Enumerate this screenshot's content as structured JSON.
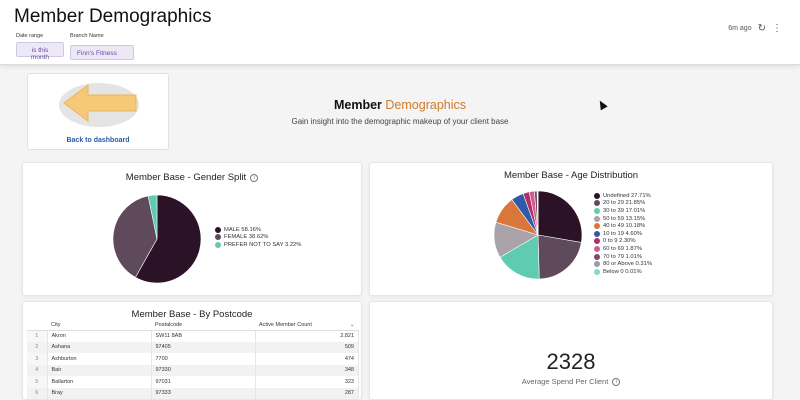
{
  "header": {
    "title": "Member Demographics",
    "filters": [
      {
        "label": "Date range",
        "value": "is this month"
      },
      {
        "label": "Branch Name",
        "value": "Finn's Fitness"
      }
    ],
    "updated": "6m ago",
    "refresh_icon": "refresh-icon",
    "menu_icon": "kebab-menu-icon"
  },
  "back_card": {
    "link": "Back to dashboard",
    "icon": "arrow-left-icon"
  },
  "intro": {
    "title_main": "Member",
    "title_accent": "Demographics",
    "subtitle": "Gain insight into the demographic makeup of your client base"
  },
  "gender_card": {
    "title": "Member Base - Gender Split",
    "chart_data": {
      "type": "pie",
      "categories": [
        "MALE",
        "FEMALE",
        "PREFER NOT TO SAY"
      ],
      "values": [
        58.16,
        38.62,
        3.22
      ],
      "legend": [
        "MALE 58.16%",
        "FEMALE 38.62%",
        "PREFER NOT TO SAY 3.22%"
      ],
      "colors": [
        "#2b1226",
        "#5e4a5a",
        "#5fcbb0"
      ],
      "legend_placement": "right"
    }
  },
  "age_card": {
    "title": "Member Base - Age Distribution",
    "chart_data": {
      "type": "pie",
      "categories": [
        "Undefined",
        "20 to 29",
        "30 to 39",
        "50 to 59",
        "40 to 49",
        "10 to 19",
        "0 to 9",
        "60 to 69",
        "70 to 79",
        "80 or Above",
        "Below 0"
      ],
      "values": [
        27.71,
        21.85,
        17.01,
        13.15,
        10.18,
        4.6,
        2.3,
        1.87,
        1.01,
        0.31,
        0.01
      ],
      "legend": [
        "Undefined 27.71%",
        "20 to 29 21.85%",
        "30 to 39 17.01%",
        "50 to 59 13.15%",
        "40 to 49 10.18%",
        "10 to 19 4.60%",
        "0 to 9 2.30%",
        "60 to 69 1.87%",
        "70 to 79 1.01%",
        "80 or Above 0.31%",
        "Below 0 0.01%"
      ],
      "colors": [
        "#2b1226",
        "#5e4a5a",
        "#5fcbb0",
        "#a9a2a8",
        "#d9763a",
        "#2e5aa8",
        "#b0306a",
        "#d65a8a",
        "#7a4a6a",
        "#9a9aaa",
        "#8ad8c0"
      ],
      "legend_placement": "right"
    }
  },
  "postcode_card": {
    "title": "Member Base - By Postcode",
    "columns": [
      "City",
      "Postalcode",
      "Active Member Count"
    ],
    "sort_icon": "chevron-down-icon",
    "rows": [
      {
        "idx": "1",
        "city": "Akron",
        "postal": "SW11 8AB",
        "count": "2,821"
      },
      {
        "idx": "2",
        "city": "Ashana",
        "postal": "97405",
        "count": "509"
      },
      {
        "idx": "3",
        "city": "Ashburton",
        "postal": "7700",
        "count": "474"
      },
      {
        "idx": "4",
        "city": "Bair",
        "postal": "97330",
        "count": "348"
      },
      {
        "idx": "5",
        "city": "Ballarton",
        "postal": "97031",
        "count": "323"
      },
      {
        "idx": "6",
        "city": "Bray",
        "postal": "97333",
        "count": "287"
      }
    ]
  },
  "spend_card": {
    "value": "2328",
    "label": "Average Spend Per Client"
  }
}
